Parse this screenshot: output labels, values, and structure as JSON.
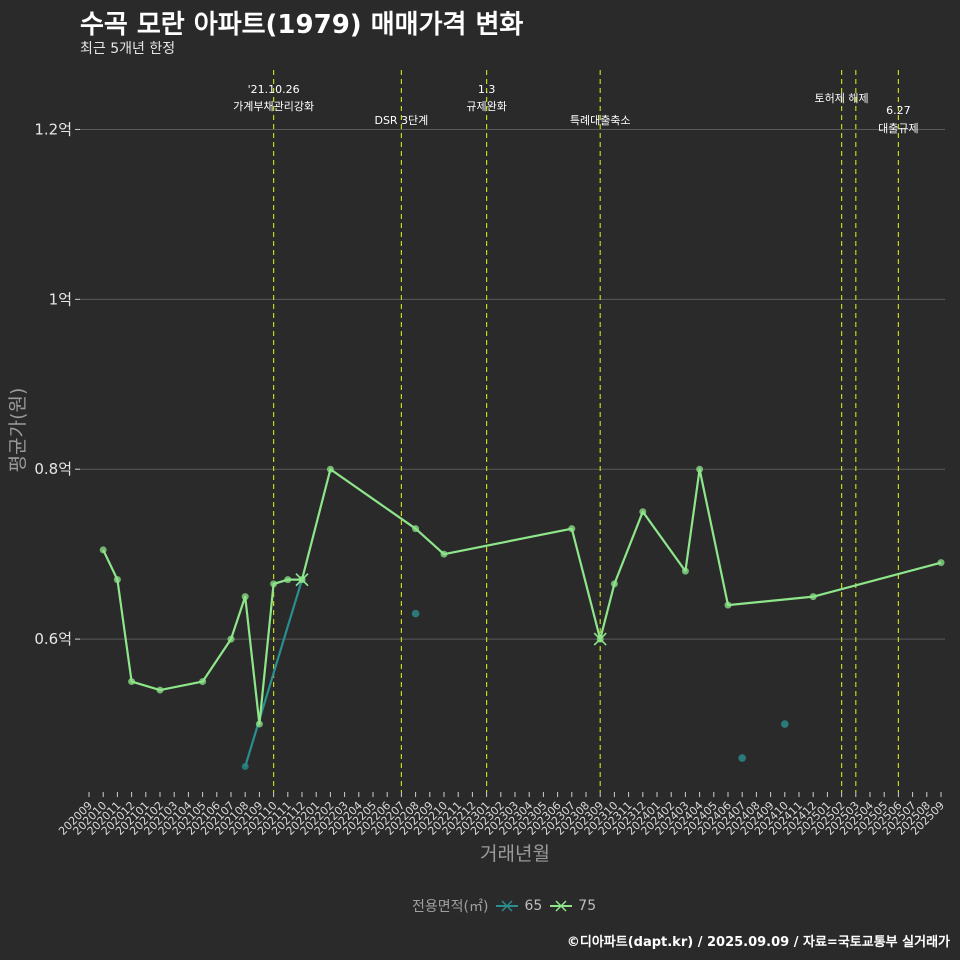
{
  "title": "수곡 모란 아파트(1979) 매매가격 변화",
  "subtitle": "최근 5개년 한정",
  "caption": "©디아파트(dapt.kr) / 2025.09.09 / 자료=국토교통부 실거래가",
  "legend": {
    "title": "전용면적(㎡)",
    "items": [
      {
        "label": "65",
        "color": "#2a8e8e"
      },
      {
        "label": "75",
        "color": "#8ee68a"
      }
    ]
  },
  "chart_data": {
    "type": "line",
    "title": "수곡 모란 아파트(1979) 매매가격 변화",
    "xlabel": "거래년월",
    "ylabel": "평균가(원)",
    "ylim": [
      0.42,
      1.27
    ],
    "yticks": [
      {
        "value": 0.6,
        "label": "0.6억"
      },
      {
        "value": 0.8,
        "label": "0.8억"
      },
      {
        "value": 1.0,
        "label": "1억"
      },
      {
        "value": 1.2,
        "label": "1.2억"
      }
    ],
    "x_categories": [
      "202009",
      "202010",
      "202011",
      "202012",
      "202101",
      "202102",
      "202103",
      "202104",
      "202105",
      "202106",
      "202107",
      "202108",
      "202109",
      "202110",
      "202111",
      "202112",
      "202201",
      "202202",
      "202203",
      "202204",
      "202205",
      "202206",
      "202207",
      "202208",
      "202209",
      "202210",
      "202211",
      "202212",
      "202301",
      "202302",
      "202303",
      "202304",
      "202305",
      "202306",
      "202307",
      "202308",
      "202309",
      "202310",
      "202311",
      "202312",
      "202401",
      "202402",
      "202403",
      "202404",
      "202405",
      "202406",
      "202407",
      "202408",
      "202409",
      "202410",
      "202411",
      "202412",
      "202501",
      "202502",
      "202503",
      "202504",
      "202505",
      "202506",
      "202507",
      "202508",
      "202509"
    ],
    "series": [
      {
        "name": "75",
        "color": "#8ee68a",
        "points": [
          {
            "x": "202010",
            "y": 0.705
          },
          {
            "x": "202011",
            "y": 0.67
          },
          {
            "x": "202012",
            "y": 0.55
          },
          {
            "x": "202102",
            "y": 0.54
          },
          {
            "x": "202105",
            "y": 0.55
          },
          {
            "x": "202107",
            "y": 0.6
          },
          {
            "x": "202108",
            "y": 0.65
          },
          {
            "x": "202109",
            "y": 0.5
          },
          {
            "x": "202110",
            "y": 0.665
          },
          {
            "x": "202111",
            "y": 0.67
          },
          {
            "x": "202112",
            "y": 0.67
          },
          {
            "x": "202202",
            "y": 0.8
          },
          {
            "x": "202208",
            "y": 0.73
          },
          {
            "x": "202210",
            "y": 0.7
          },
          {
            "x": "202307",
            "y": 0.73
          },
          {
            "x": "202309",
            "y": 0.6
          },
          {
            "x": "202310",
            "y": 0.665
          },
          {
            "x": "202312",
            "y": 0.75
          },
          {
            "x": "202403",
            "y": 0.68
          },
          {
            "x": "202404",
            "y": 0.8
          },
          {
            "x": "202406",
            "y": 0.64
          },
          {
            "x": "202412",
            "y": 0.65
          },
          {
            "x": "202509",
            "y": 0.69
          }
        ],
        "cross_markers": [
          "202112",
          "202309"
        ]
      },
      {
        "name": "65",
        "color": "#2a8e8e",
        "points": [
          {
            "x": "202108",
            "y": 0.45
          },
          {
            "x": "202112",
            "y": 0.67
          }
        ],
        "cross_markers": [
          "202112"
        ],
        "scatter": [
          {
            "x": "202208",
            "y": 0.63
          },
          {
            "x": "202407",
            "y": 0.46
          },
          {
            "x": "202410",
            "y": 0.5
          }
        ]
      }
    ],
    "events": [
      {
        "x": "202110",
        "line1": "'21.10.26",
        "line2": "가계부채관리강화"
      },
      {
        "x": "202207",
        "line1": "",
        "line2": "DSR 3단계"
      },
      {
        "x": "202301",
        "line1": "1.3",
        "line2": "규제완화"
      },
      {
        "x": "202309",
        "line1": "",
        "line2": "특례대출축소"
      },
      {
        "x": "202502",
        "line1": "토허제 해제",
        "line2": ""
      },
      {
        "x": "202503",
        "line1": "",
        "line2": ""
      },
      {
        "x": "202506",
        "line1": "6.27",
        "line2": "대출규제"
      }
    ]
  }
}
